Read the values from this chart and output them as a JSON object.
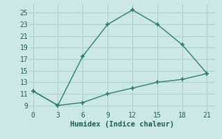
{
  "line1_x": [
    0,
    3,
    6,
    9,
    12,
    15,
    18,
    21
  ],
  "line1_y": [
    11.5,
    9.0,
    17.5,
    23.0,
    25.5,
    23.0,
    19.5,
    14.5
  ],
  "line2_x": [
    0,
    3,
    6,
    9,
    12,
    15,
    18,
    21
  ],
  "line2_y": [
    11.5,
    9.0,
    9.5,
    11.0,
    12.0,
    13.0,
    13.5,
    14.5
  ],
  "line_color": "#2e7d6e",
  "bg_color": "#cce8e4",
  "grid_color": "#aacfcc",
  "xlabel": "Humidex (Indice chaleur)",
  "xlabel_fontsize": 7.5,
  "xlabel_color": "#1e5c52",
  "tick_color": "#1e5c52",
  "tick_fontsize": 7,
  "xlim": [
    -0.5,
    22
  ],
  "ylim": [
    8.0,
    26.5
  ],
  "xticks": [
    0,
    3,
    6,
    9,
    12,
    15,
    18,
    21
  ],
  "yticks": [
    9,
    11,
    13,
    15,
    17,
    19,
    21,
    23,
    25
  ],
  "marker": "+",
  "markersize": 5,
  "markeredgewidth": 1.2,
  "linewidth": 1.0
}
